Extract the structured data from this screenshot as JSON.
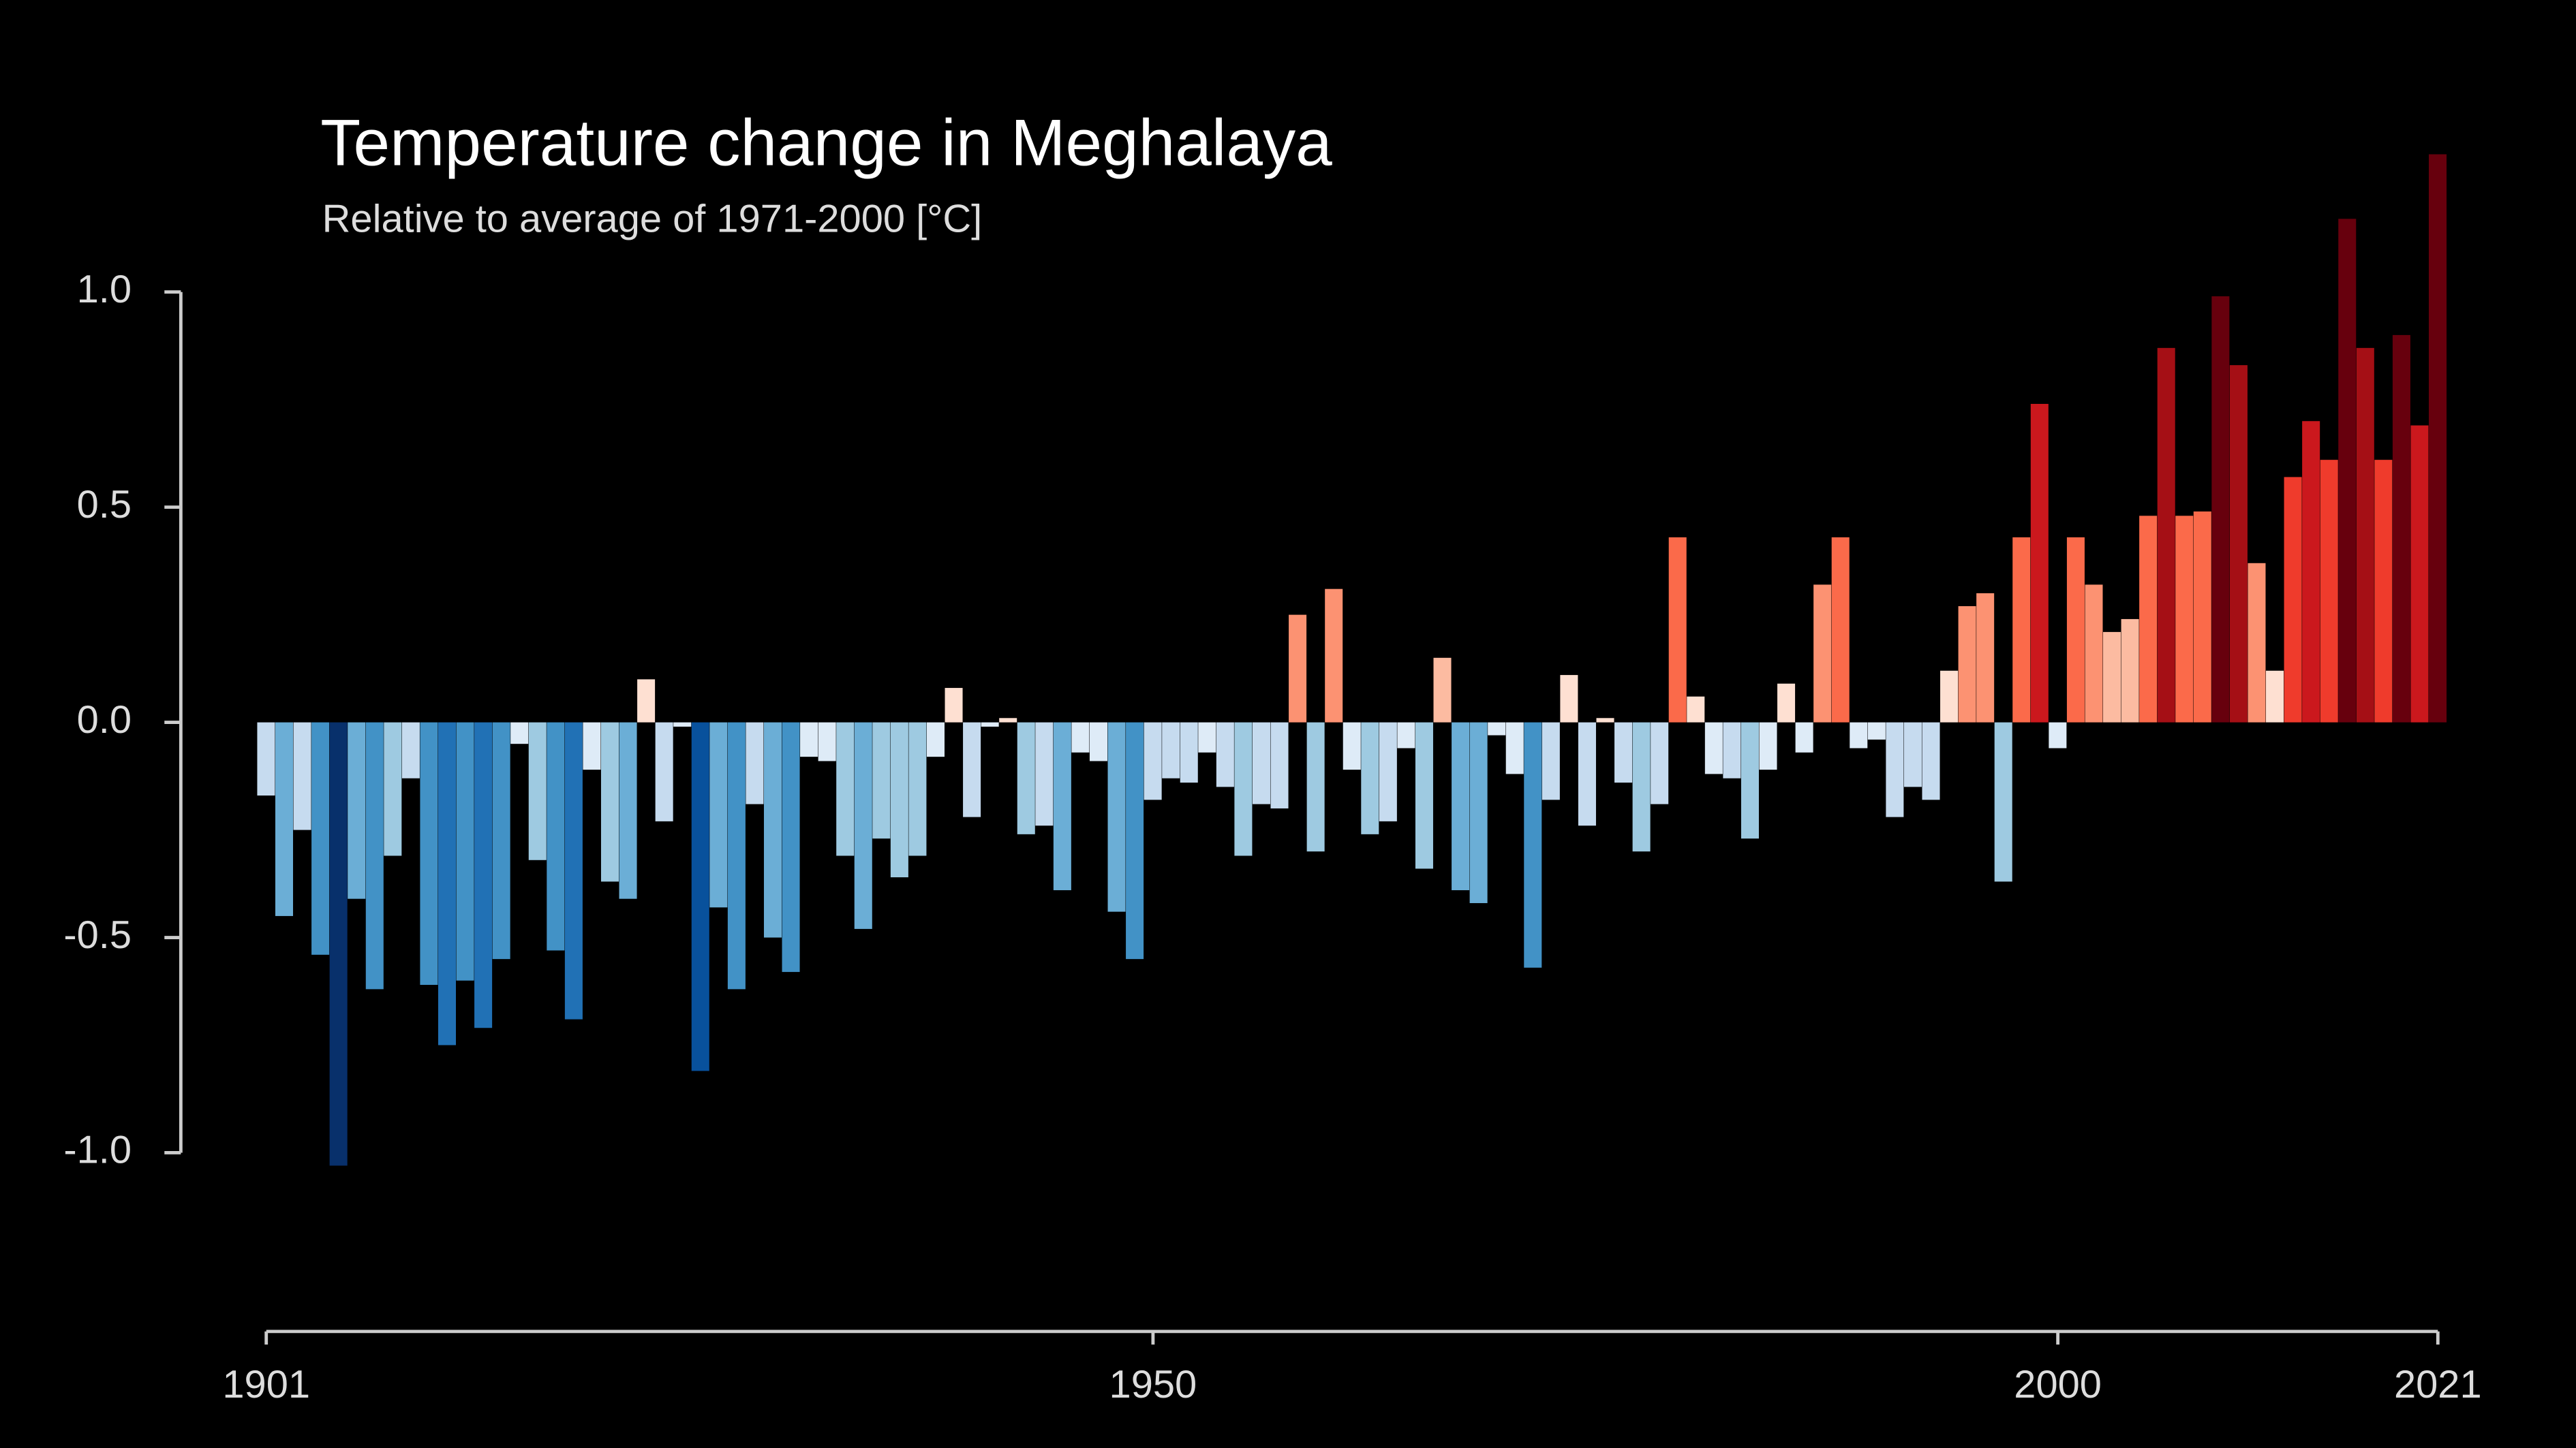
{
  "chart_data": {
    "type": "bar",
    "title": "Temperature change in Meghalaya",
    "subtitle": "Relative to average of 1971-2000  [°C]",
    "x": [
      1901,
      1902,
      1903,
      1904,
      1905,
      1906,
      1907,
      1908,
      1909,
      1910,
      1911,
      1912,
      1913,
      1914,
      1915,
      1916,
      1917,
      1918,
      1919,
      1920,
      1921,
      1922,
      1923,
      1924,
      1925,
      1926,
      1927,
      1928,
      1929,
      1930,
      1931,
      1932,
      1933,
      1934,
      1935,
      1936,
      1937,
      1938,
      1939,
      1940,
      1941,
      1942,
      1943,
      1944,
      1945,
      1946,
      1947,
      1948,
      1949,
      1950,
      1951,
      1952,
      1953,
      1954,
      1955,
      1956,
      1957,
      1958,
      1959,
      1960,
      1961,
      1962,
      1963,
      1964,
      1965,
      1966,
      1967,
      1968,
      1969,
      1970,
      1971,
      1972,
      1973,
      1974,
      1975,
      1976,
      1977,
      1978,
      1979,
      1980,
      1981,
      1982,
      1983,
      1984,
      1985,
      1986,
      1987,
      1988,
      1989,
      1990,
      1991,
      1992,
      1993,
      1994,
      1995,
      1996,
      1997,
      1998,
      1999,
      2000,
      2001,
      2002,
      2003,
      2004,
      2005,
      2006,
      2007,
      2008,
      2009,
      2010,
      2011,
      2012,
      2013,
      2014,
      2015,
      2016,
      2017,
      2018,
      2019,
      2020,
      2021
    ],
    "values": [
      -0.17,
      -0.45,
      -0.25,
      -0.54,
      -1.03,
      -0.41,
      -0.62,
      -0.31,
      -0.13,
      -0.61,
      -0.75,
      -0.6,
      -0.71,
      -0.55,
      -0.05,
      -0.32,
      -0.53,
      -0.69,
      -0.11,
      -0.37,
      -0.41,
      0.1,
      -0.23,
      -0.01,
      -0.81,
      -0.43,
      -0.62,
      -0.19,
      -0.5,
      -0.58,
      -0.08,
      -0.09,
      -0.31,
      -0.48,
      -0.27,
      -0.36,
      -0.31,
      -0.08,
      0.08,
      -0.22,
      -0.01,
      0.01,
      -0.26,
      -0.24,
      -0.39,
      -0.07,
      -0.09,
      -0.44,
      -0.55,
      -0.18,
      -0.13,
      -0.14,
      -0.07,
      -0.15,
      -0.31,
      -0.19,
      -0.2,
      0.25,
      -0.3,
      0.31,
      -0.11,
      -0.26,
      -0.23,
      -0.06,
      -0.34,
      0.15,
      -0.39,
      -0.42,
      -0.03,
      -0.12,
      -0.57,
      -0.18,
      0.11,
      -0.24,
      0.01,
      -0.14,
      -0.3,
      -0.19,
      0.43,
      0.06,
      -0.12,
      -0.13,
      -0.27,
      -0.11,
      0.09,
      -0.07,
      0.32,
      0.43,
      -0.06,
      -0.04,
      -0.22,
      -0.15,
      -0.18,
      0.12,
      0.27,
      0.3,
      -0.37,
      0.43,
      0.74,
      -0.06,
      0.43,
      0.32,
      0.21,
      0.24,
      0.48,
      0.87,
      0.48,
      0.49,
      0.99,
      0.83,
      0.37,
      0.12,
      0.57,
      0.7,
      0.61,
      1.17,
      0.87,
      0.61,
      0.9,
      0.69,
      1.32
    ],
    "colormap": [
      "#08306b",
      "#08519c",
      "#2171b5",
      "#4292c6",
      "#6baed6",
      "#9ecae1",
      "#c6dbef",
      "#deebf7",
      "#fee0d2",
      "#fcbba1",
      "#fc9272",
      "#fb6a4a",
      "#ef3b2c",
      "#cb181d",
      "#a50f15",
      "#67000d"
    ],
    "xlim": [
      1901,
      2021
    ],
    "xticks": [
      1901,
      1950,
      2000,
      2021
    ],
    "ylim": [
      -1.4,
      1.4
    ],
    "yticks": [
      {
        "value": 1,
        "label": "1.0"
      },
      {
        "value": 0.5,
        "label": "0.5"
      },
      {
        "value": 0,
        "label": "0.0"
      },
      {
        "value": -0.5,
        "label": "-0.5"
      },
      {
        "value": -1,
        "label": "-1.0"
      }
    ]
  }
}
